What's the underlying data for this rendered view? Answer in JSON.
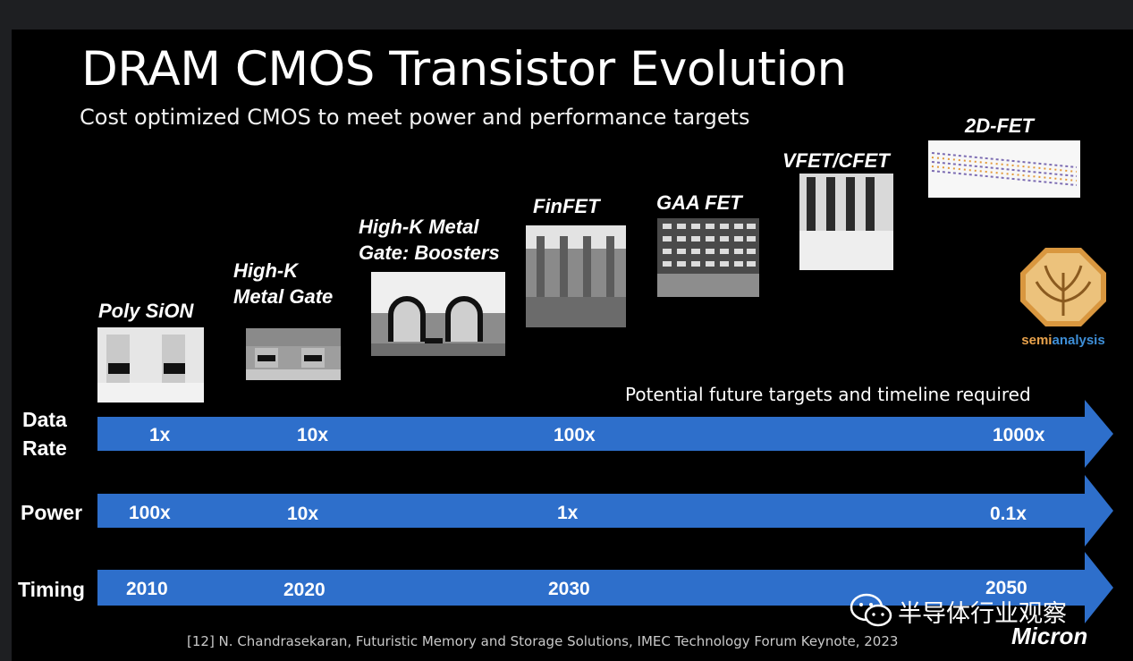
{
  "slide": {
    "title": "DRAM CMOS Transistor Evolution",
    "subtitle": "Cost optimized CMOS to meet power and performance targets",
    "transistors": [
      {
        "lines": [
          "Poly SiON"
        ]
      },
      {
        "lines": [
          "High-K",
          "Metal Gate"
        ]
      },
      {
        "lines": [
          "High-K Metal",
          "Gate: Boosters"
        ]
      },
      {
        "lines": [
          "FinFET"
        ]
      },
      {
        "lines": [
          "GAA FET"
        ]
      },
      {
        "lines": [
          "VFET/CFET"
        ]
      },
      {
        "lines": [
          "2D-FET"
        ]
      }
    ],
    "future_note": "Potential future targets and timeline required",
    "rows": {
      "data_rate": {
        "label_lines": [
          "Data",
          "Rate"
        ],
        "values": [
          "1x",
          "10x",
          "100x",
          "1000x"
        ]
      },
      "power": {
        "label": "Power",
        "values": [
          "100x",
          "10x",
          "1x",
          "0.1x"
        ]
      },
      "timing": {
        "label": "Timing",
        "values": [
          "2010",
          "2020",
          "2030",
          "2050"
        ]
      }
    },
    "footer": "[12] N. Chandrasekaran, Futuristic Memory and Storage Solutions, IMEC Technology Forum Keynote, 2023",
    "micron_logo": "Micron",
    "semianalysis_logo": {
      "part1": "semi",
      "part2": "analysis"
    },
    "watermark": "半导体行业观察",
    "colors": {
      "arrow": "#2e6fcb",
      "background": "#000000"
    }
  }
}
